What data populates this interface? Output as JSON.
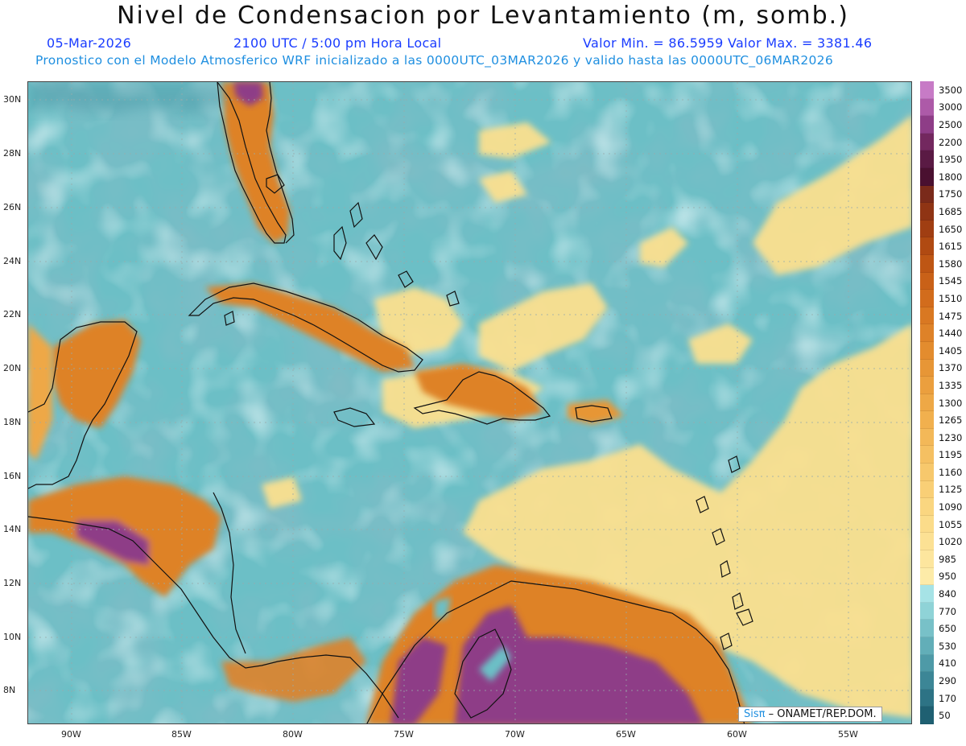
{
  "title": "Nivel de Condensacion por Levantamiento (m, somb.)",
  "date": "05-Mar-2026",
  "time": "2100 UTC / 5:00 pm Hora Local",
  "minmax": "Valor Min. = 86.5959   Valor Max. = 3381.46",
  "description": "Pronostico con el Modelo Atmosferico WRF inicializado a las 0000UTC_03MAR2026 y valido hasta las  0000UTC_06MAR2026",
  "lat_labels": [
    "30N",
    "28N",
    "26N",
    "24N",
    "22N",
    "20N",
    "18N",
    "16N",
    "14N",
    "12N",
    "10N",
    "8N"
  ],
  "lon_labels": [
    "90W",
    "85W",
    "80W",
    "75W",
    "70W",
    "65W",
    "60W",
    "55W"
  ],
  "colorbar": {
    "labels": [
      "3500",
      "3000",
      "2500",
      "2200",
      "1950",
      "1800",
      "1750",
      "1685",
      "1650",
      "1615",
      "1580",
      "1545",
      "1510",
      "1475",
      "1440",
      "1405",
      "1370",
      "1335",
      "1300",
      "1265",
      "1230",
      "1195",
      "1160",
      "1125",
      "1090",
      "1055",
      "1020",
      "985",
      "950",
      "840",
      "770",
      "650",
      "530",
      "410",
      "290",
      "170",
      "50"
    ],
    "colors": [
      "#c77bc6",
      "#ad5aa8",
      "#8e3d87",
      "#73285f",
      "#5a1a44",
      "#4a1030",
      "#7a2a1a",
      "#8f3414",
      "#a03e12",
      "#b04a12",
      "#be5614",
      "#c96118",
      "#d26c1c",
      "#d97822",
      "#de8228",
      "#e38c2e",
      "#e79636",
      "#eb9f3e",
      "#eea846",
      "#f1b04e",
      "#f3b858",
      "#f5c062",
      "#f7c86c",
      "#f9cf76",
      "#fad680",
      "#fbdc8a",
      "#fce194",
      "#fde69e",
      "#fdeba8",
      "#a6e3e6",
      "#8fd3d7",
      "#78c1c8",
      "#62aeb8",
      "#4e9aa7",
      "#3c8696",
      "#2d7385",
      "#1f6072"
    ]
  },
  "credit": {
    "brand": "Sis",
    "pi": "π",
    "text": " – ONAMET/REP.DOM."
  },
  "colors": {
    "ocean": "#6cbfc6",
    "ocean_dark": "#3f8f9e",
    "dry": "#fbe08f",
    "land_mid": "#de8228",
    "land_high": "#8e3d87"
  }
}
